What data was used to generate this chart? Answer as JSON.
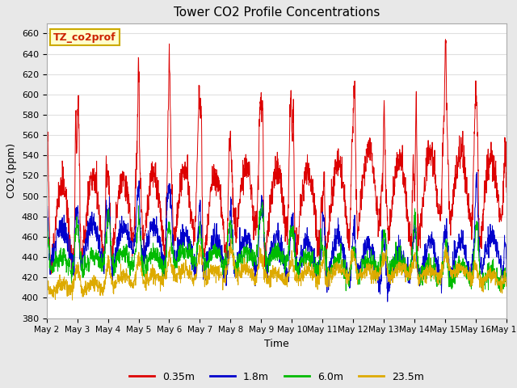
{
  "title": "Tower CO2 Profile Concentrations",
  "xlabel": "Time",
  "ylabel": "CO2 (ppm)",
  "ylim": [
    380,
    670
  ],
  "yticks": [
    380,
    400,
    420,
    440,
    460,
    480,
    500,
    520,
    540,
    560,
    580,
    600,
    620,
    640,
    660
  ],
  "label_annotation": "TZ_co2prof",
  "series_labels": [
    "0.35m",
    "1.8m",
    "6.0m",
    "23.5m"
  ],
  "series_colors": [
    "#dd0000",
    "#0000cc",
    "#00bb00",
    "#ddaa00"
  ],
  "fig_bg_color": "#e8e8e8",
  "plot_bg_color": "#ffffff",
  "grid_color": "#e0e0e0",
  "n_days": 15,
  "samples_per_day": 144,
  "start_day": 2
}
